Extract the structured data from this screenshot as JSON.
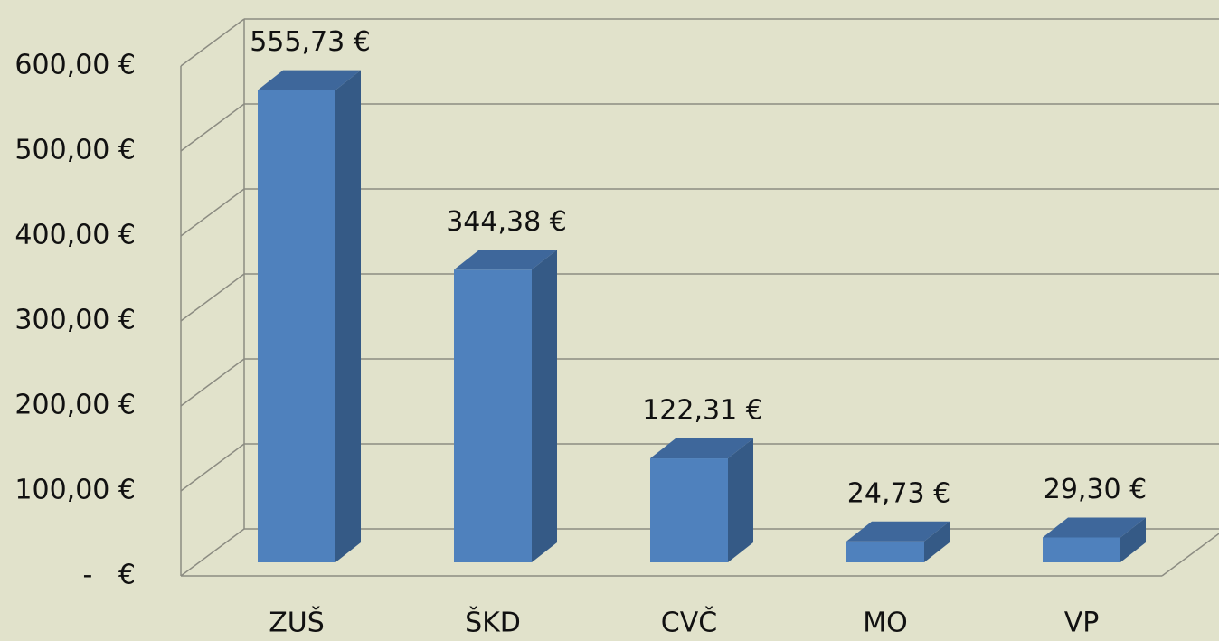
{
  "chart_data": {
    "type": "bar3d",
    "categories": [
      "ZUŠ",
      "ŠKD",
      "CVČ",
      "MO",
      "VP"
    ],
    "values": [
      555.73,
      344.38,
      122.31,
      24.73,
      29.3
    ],
    "value_labels": [
      "555,73 €",
      "344,38 €",
      "122,31 €",
      "24,73 €",
      "29,30 €"
    ],
    "color": "#4f81bd",
    "ylim": [
      0,
      600
    ],
    "yticks": [
      {
        "value": 0,
        "label": "-   €"
      },
      {
        "value": 100,
        "label": "100,00 €"
      },
      {
        "value": 200,
        "label": "200,00 €"
      },
      {
        "value": 300,
        "label": "300,00 €"
      },
      {
        "value": 400,
        "label": "400,00 €"
      },
      {
        "value": 500,
        "label": "500,00 €"
      },
      {
        "value": 600,
        "label": "600,00 €"
      }
    ],
    "grid": true
  }
}
